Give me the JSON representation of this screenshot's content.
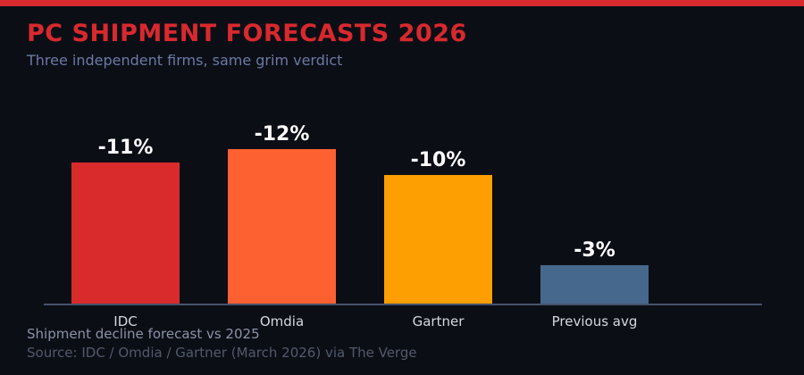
{
  "page": {
    "background_color": "#0c0e16",
    "accent_color": "#d8292e"
  },
  "header": {
    "title": "PC SHIPMENT FORECASTS 2026",
    "subtitle": "Three independent firms, same grim verdict",
    "title_color": "#d8292e",
    "subtitle_color": "#6b7aa5"
  },
  "footer": {
    "note": "Shipment decline forecast vs 2025",
    "source": "Source: IDC / Omdia / Gartner (March 2026) via The Verge",
    "note_color": "#8a93a6",
    "source_color": "#515a6a"
  },
  "chart_data": {
    "type": "bar",
    "title": "PC SHIPMENT FORECASTS 2026",
    "subtitle": "Three independent firms, same grim verdict",
    "categories": [
      "IDC",
      "Omdia",
      "Gartner",
      "Previous avg"
    ],
    "values": [
      -11,
      -12,
      -10,
      -3
    ],
    "value_labels": [
      "-11%",
      "-12%",
      "-10%",
      "-3%"
    ],
    "bar_colors": [
      "#d92b2b",
      "#fd6031",
      "#fd9e02",
      "#46688c"
    ],
    "xlabel": "",
    "ylabel": "",
    "unit": "percent decline vs 2025",
    "bars_show_absolute_value": true,
    "ylim": [
      -12,
      0
    ],
    "grid": false,
    "legend": false,
    "axis_line_color": "#46526b",
    "value_label_color": "#ffffff",
    "category_label_color": "#d4d7dc"
  }
}
